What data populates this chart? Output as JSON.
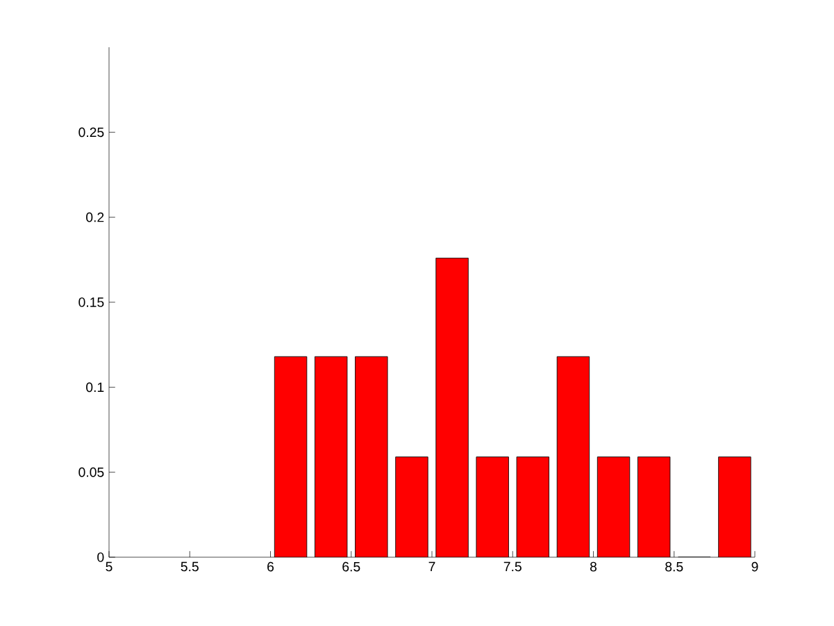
{
  "chart_data": {
    "type": "bar",
    "x": [
      6.125,
      6.375,
      6.625,
      6.875,
      7.125,
      7.375,
      7.625,
      7.875,
      8.125,
      8.375,
      8.625,
      8.875
    ],
    "values": [
      0.118,
      0.118,
      0.118,
      0.059,
      0.176,
      0.059,
      0.059,
      0.118,
      0.059,
      0.059,
      0,
      0.059
    ],
    "color": "#ff0000",
    "xlim": [
      5,
      9
    ],
    "ylim": [
      0,
      0.3
    ],
    "xticks": [
      5,
      5.5,
      6,
      6.5,
      7,
      7.5,
      8,
      8.5,
      9
    ],
    "yticks": [
      0,
      0.05,
      0.1,
      0.15,
      0.2,
      0.25
    ]
  }
}
